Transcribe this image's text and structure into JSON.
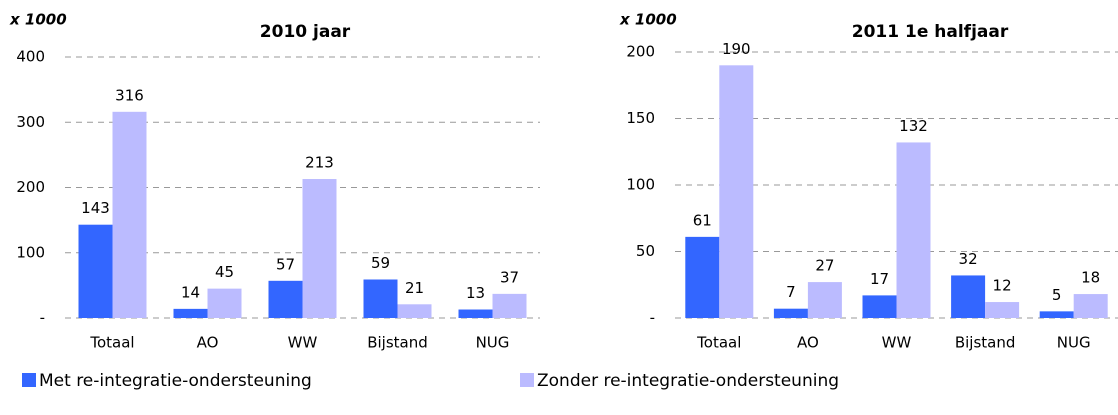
{
  "chart_data": [
    {
      "type": "bar",
      "title": "2010 jaar",
      "y_label": "x 1000",
      "categories": [
        "Totaal",
        "AO",
        "WW",
        "Bijstand",
        "NUG"
      ],
      "series": [
        {
          "name": "Met re-integratie-ondersteuning",
          "color": "#3366ff",
          "values": [
            143,
            14,
            57,
            59,
            13
          ]
        },
        {
          "name": "Zonder re-integratie-ondersteuning",
          "color": "#bbbbff",
          "values": [
            316,
            45,
            213,
            21,
            37
          ]
        }
      ],
      "ylim": [
        0,
        400
      ],
      "yticks": [
        {
          "value": 0,
          "label": "-"
        },
        100,
        200,
        300,
        400
      ],
      "grid": true
    },
    {
      "type": "bar",
      "title": "2011 1e halfjaar",
      "y_label": "x 1000",
      "categories": [
        "Totaal",
        "AO",
        "WW",
        "Bijstand",
        "NUG"
      ],
      "series": [
        {
          "color": "#3366ff",
          "values": [
            61,
            7,
            17,
            32,
            5
          ]
        },
        {
          "color": "#bbbbff",
          "values": [
            190,
            27,
            132,
            12,
            18
          ]
        }
      ],
      "ylim": [
        0,
        200
      ],
      "yticks": [
        {
          "value": 0,
          "label": "-"
        },
        50,
        100,
        150,
        200
      ],
      "grid": true
    }
  ]
}
